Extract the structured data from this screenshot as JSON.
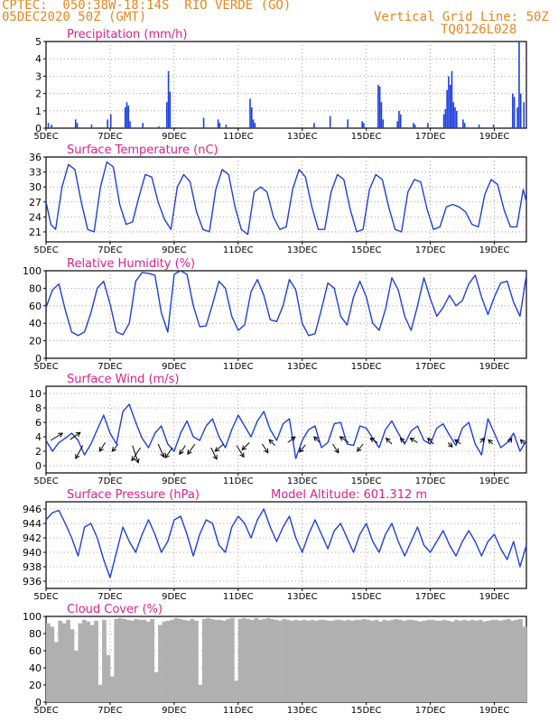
{
  "header": {
    "line1": "CPTEC:  050:38W-18:14S  RIO VERDE (GO)",
    "line2": "05DEC2020 50Z (GMT)",
    "grid_note": "Vertical Grid Line: 50Z",
    "run_code": "TQ0126L028"
  },
  "colors": {
    "header": "#e8861f",
    "title": "#e0208a",
    "line": "#1f3fe0",
    "cloud": "#b0b0b0",
    "arrow": "#000000"
  },
  "date_labels": [
    "5DEC",
    "7DEC",
    "9DEC",
    "11DEC",
    "13DEC",
    "15DEC",
    "17DEC",
    "19DEC"
  ],
  "chart_data": [
    {
      "id": "precip",
      "type": "bar",
      "title": "Precipitation (mm/h)",
      "x_range_days": [
        5,
        20
      ],
      "ylim": [
        0,
        5
      ],
      "yticks": [
        0,
        1,
        2,
        3,
        4,
        5
      ],
      "x": [
        5.05,
        5.15,
        5.9,
        5.95,
        6.4,
        6.9,
        7.0,
        7.45,
        7.5,
        7.55,
        7.6,
        8.0,
        8.5,
        8.75,
        8.8,
        8.85,
        9.9,
        10.35,
        10.4,
        10.6,
        11.35,
        11.4,
        11.45,
        11.5,
        13.35,
        13.85,
        14.4,
        14.85,
        14.9,
        15.35,
        15.4,
        15.45,
        15.5,
        15.95,
        16.0,
        16.05,
        16.45,
        16.5,
        16.9,
        17.4,
        17.45,
        17.5,
        17.55,
        17.6,
        17.65,
        17.7,
        17.75,
        17.8,
        18.0,
        18.05,
        18.5,
        18.95,
        19.55,
        19.6,
        19.7,
        19.75,
        19.8,
        19.9
      ],
      "values": [
        0.3,
        0.2,
        0.5,
        0.3,
        0.2,
        0.5,
        0.8,
        1.2,
        1.5,
        1.3,
        0.4,
        0.3,
        0.1,
        1.5,
        3.3,
        2.1,
        0.6,
        0.5,
        0.3,
        0.2,
        1.7,
        1.2,
        0.5,
        0.3,
        0.3,
        0.7,
        0.5,
        0.4,
        0.3,
        2.5,
        2.4,
        1.5,
        0.5,
        0.4,
        1.0,
        0.8,
        0.3,
        0.2,
        0.3,
        0.8,
        1.1,
        2.2,
        3.0,
        2.5,
        3.3,
        1.5,
        1.2,
        1.0,
        0.5,
        0.3,
        0.2,
        0.2,
        2.0,
        1.8,
        1.2,
        5.0,
        2.0,
        1.5
      ]
    },
    {
      "id": "temp",
      "type": "line",
      "title": "Surface Temperature (nC)",
      "x_range_days": [
        5,
        20
      ],
      "ylim": [
        19,
        36
      ],
      "yticks": [
        21,
        24,
        27,
        30,
        33,
        36
      ],
      "x": [
        5.0,
        5.15,
        5.3,
        5.5,
        5.7,
        5.9,
        6.1,
        6.3,
        6.5,
        6.7,
        6.9,
        7.1,
        7.3,
        7.5,
        7.7,
        7.9,
        8.1,
        8.3,
        8.5,
        8.7,
        8.9,
        9.1,
        9.3,
        9.5,
        9.7,
        9.9,
        10.1,
        10.3,
        10.5,
        10.7,
        10.9,
        11.1,
        11.3,
        11.5,
        11.7,
        11.9,
        12.1,
        12.3,
        12.5,
        12.7,
        12.9,
        13.1,
        13.3,
        13.5,
        13.7,
        13.9,
        14.1,
        14.3,
        14.5,
        14.7,
        14.9,
        15.1,
        15.3,
        15.5,
        15.7,
        15.9,
        16.1,
        16.3,
        16.5,
        16.7,
        16.9,
        17.1,
        17.3,
        17.5,
        17.7,
        17.9,
        18.1,
        18.3,
        18.5,
        18.7,
        18.9,
        19.1,
        19.3,
        19.5,
        19.7,
        19.9,
        20.0
      ],
      "values": [
        27.0,
        22.5,
        21.5,
        30.0,
        34.5,
        33.5,
        27.0,
        21.5,
        21.0,
        30.0,
        35.0,
        34.0,
        26.5,
        22.5,
        23.0,
        28.0,
        32.5,
        32.0,
        27.0,
        23.5,
        21.5,
        30.0,
        32.5,
        31.0,
        25.0,
        21.5,
        21.0,
        29.5,
        33.5,
        32.5,
        26.0,
        21.5,
        20.5,
        29.0,
        30.0,
        29.0,
        24.0,
        21.5,
        22.0,
        29.5,
        33.5,
        32.0,
        26.0,
        21.5,
        21.5,
        29.0,
        32.5,
        31.5,
        25.5,
        21.0,
        21.5,
        29.5,
        32.5,
        31.5,
        26.0,
        21.5,
        21.0,
        29.0,
        31.5,
        31.0,
        25.5,
        21.5,
        22.0,
        26.0,
        26.5,
        26.0,
        25.0,
        22.5,
        22.0,
        28.5,
        31.5,
        30.5,
        25.5,
        22.0,
        22.0,
        29.5,
        27.0
      ]
    },
    {
      "id": "rh",
      "type": "line",
      "title": "Relative Humidity (%)",
      "x_range_days": [
        5,
        20
      ],
      "ylim": [
        0,
        100
      ],
      "yticks": [
        0,
        20,
        40,
        60,
        80,
        100
      ],
      "x": [
        5.0,
        5.2,
        5.4,
        5.6,
        5.8,
        6.0,
        6.2,
        6.4,
        6.6,
        6.8,
        7.0,
        7.2,
        7.4,
        7.6,
        7.8,
        8.0,
        8.2,
        8.4,
        8.6,
        8.8,
        9.0,
        9.2,
        9.4,
        9.6,
        9.8,
        10.0,
        10.2,
        10.4,
        10.6,
        10.8,
        11.0,
        11.2,
        11.4,
        11.6,
        11.8,
        12.0,
        12.2,
        12.4,
        12.6,
        12.8,
        13.0,
        13.2,
        13.4,
        13.6,
        13.8,
        14.0,
        14.2,
        14.4,
        14.6,
        14.8,
        15.0,
        15.2,
        15.4,
        15.6,
        15.8,
        16.0,
        16.2,
        16.4,
        16.6,
        16.8,
        17.0,
        17.2,
        17.4,
        17.6,
        17.8,
        18.0,
        18.2,
        18.4,
        18.6,
        18.8,
        19.0,
        19.2,
        19.4,
        19.6,
        19.8,
        20.0
      ],
      "values": [
        58,
        78,
        85,
        55,
        30,
        26,
        30,
        52,
        80,
        88,
        62,
        30,
        27,
        40,
        88,
        98,
        97,
        95,
        52,
        30,
        96,
        100,
        96,
        60,
        36,
        37,
        62,
        88,
        80,
        48,
        32,
        38,
        76,
        90,
        72,
        44,
        42,
        60,
        90,
        78,
        40,
        26,
        28,
        56,
        86,
        80,
        48,
        38,
        70,
        88,
        70,
        40,
        32,
        56,
        92,
        78,
        48,
        32,
        60,
        92,
        68,
        48,
        58,
        72,
        60,
        66,
        85,
        95,
        70,
        50,
        70,
        86,
        88,
        64,
        48,
        95
      ]
    },
    {
      "id": "wind",
      "type": "line",
      "title": "Surface Wind (m/s)",
      "x_range_days": [
        5,
        20
      ],
      "ylim": [
        -1,
        11
      ],
      "yticks": [
        0,
        2,
        4,
        6,
        8,
        10
      ],
      "x": [
        5.0,
        5.2,
        5.4,
        5.6,
        5.8,
        6.0,
        6.2,
        6.4,
        6.6,
        6.8,
        7.0,
        7.2,
        7.4,
        7.6,
        7.8,
        8.0,
        8.2,
        8.4,
        8.6,
        8.8,
        9.0,
        9.2,
        9.4,
        9.6,
        9.8,
        10.0,
        10.2,
        10.4,
        10.6,
        10.8,
        11.0,
        11.2,
        11.4,
        11.6,
        11.8,
        12.0,
        12.2,
        12.4,
        12.6,
        12.8,
        13.0,
        13.2,
        13.4,
        13.6,
        13.8,
        14.0,
        14.2,
        14.4,
        14.6,
        14.8,
        15.0,
        15.2,
        15.4,
        15.6,
        15.8,
        16.0,
        16.2,
        16.4,
        16.6,
        16.8,
        17.0,
        17.2,
        17.4,
        17.6,
        17.8,
        18.0,
        18.2,
        18.4,
        18.6,
        18.8,
        19.0,
        19.2,
        19.4,
        19.6,
        19.8,
        20.0
      ],
      "values": [
        3.5,
        2.0,
        3.2,
        3.8,
        4.5,
        3.5,
        1.5,
        3.0,
        5.0,
        7.0,
        4.5,
        3.0,
        7.5,
        8.5,
        6.0,
        3.8,
        2.5,
        4.5,
        5.5,
        3.0,
        2.0,
        4.5,
        6.2,
        4.0,
        3.5,
        5.5,
        6.5,
        4.0,
        2.5,
        5.0,
        7.0,
        5.5,
        4.0,
        6.2,
        7.5,
        5.0,
        3.5,
        5.8,
        6.5,
        1.0,
        3.5,
        5.0,
        5.5,
        2.5,
        3.2,
        5.8,
        6.0,
        3.0,
        2.8,
        5.5,
        5.2,
        3.8,
        2.5,
        5.0,
        6.2,
        4.5,
        3.0,
        4.8,
        5.5,
        3.5,
        3.0,
        5.2,
        5.8,
        4.2,
        2.8,
        5.2,
        6.0,
        3.0,
        1.5,
        6.5,
        4.5,
        2.5,
        3.2,
        4.5,
        2.0,
        3.5
      ],
      "arrows": {
        "x": [
          5.15,
          5.75,
          6.15,
          6.85,
          7.25,
          7.7,
          7.95,
          8.5,
          8.95,
          9.35,
          9.65,
          10.15,
          10.55,
          10.95,
          11.35,
          11.75,
          12.15,
          12.55,
          13.1,
          13.55,
          13.95,
          14.45,
          14.9,
          15.35,
          15.8,
          16.2,
          16.6,
          17.1,
          17.55,
          17.95,
          18.55,
          18.95,
          19.45,
          19.95
        ],
        "y": [
          3.5,
          3.6,
          2.8,
          3.2,
          3.0,
          2.8,
          2.5,
          3.0,
          2.5,
          2.8,
          3.0,
          2.5,
          3.0,
          2.8,
          3.2,
          3.0,
          2.8,
          3.2,
          2.9,
          3.2,
          3.0,
          3.2,
          3.0,
          3.2,
          3.0,
          3.2,
          3.2,
          3.0,
          3.2,
          3.0,
          3.2,
          3.0,
          3.2,
          3.0
        ],
        "u": [
          1.6,
          1.4,
          -1.0,
          -0.8,
          -0.8,
          0.8,
          -1.2,
          0.8,
          -1.0,
          -0.8,
          -1.0,
          0.8,
          -1.2,
          1.0,
          -1.0,
          0.8,
          -0.8,
          1.0,
          -0.8,
          -0.8,
          0.8,
          -1.2,
          -0.8,
          -1.0,
          -0.8,
          -0.6,
          -1.0,
          -0.8,
          0.6,
          -0.8,
          0.6,
          -0.6,
          0.4,
          -0.6
        ],
        "v": [
          1.0,
          1.0,
          -1.8,
          -1.2,
          -1.0,
          -2.4,
          -1.8,
          -1.8,
          -1.4,
          -1.2,
          -1.4,
          -1.6,
          -1.0,
          -1.6,
          -1.0,
          -1.2,
          0.8,
          0.8,
          -1.0,
          0.8,
          -1.2,
          0.8,
          -1.0,
          0.6,
          0.8,
          0.6,
          0.6,
          0.8,
          -0.6,
          0.6,
          0.6,
          0.6,
          0.6,
          0.6
        ]
      }
    },
    {
      "id": "pressure",
      "type": "line",
      "title": "Surface Pressure (hPa)",
      "subtitle": "Model Altitude: 601.312  m",
      "x_range_days": [
        5,
        20
      ],
      "ylim": [
        935,
        947
      ],
      "yticks": [
        936,
        938,
        940,
        942,
        944,
        946
      ],
      "x": [
        5.0,
        5.2,
        5.4,
        5.6,
        5.8,
        6.0,
        6.2,
        6.4,
        6.6,
        6.8,
        7.0,
        7.2,
        7.4,
        7.6,
        7.8,
        8.0,
        8.2,
        8.4,
        8.6,
        8.8,
        9.0,
        9.2,
        9.4,
        9.6,
        9.8,
        10.0,
        10.2,
        10.4,
        10.6,
        10.8,
        11.0,
        11.2,
        11.4,
        11.6,
        11.8,
        12.0,
        12.2,
        12.4,
        12.6,
        12.8,
        13.0,
        13.2,
        13.4,
        13.6,
        13.8,
        14.0,
        14.2,
        14.4,
        14.6,
        14.8,
        15.0,
        15.2,
        15.4,
        15.6,
        15.8,
        16.0,
        16.2,
        16.4,
        16.6,
        16.8,
        17.0,
        17.2,
        17.4,
        17.6,
        17.8,
        18.0,
        18.2,
        18.4,
        18.6,
        18.8,
        19.0,
        19.2,
        19.4,
        19.6,
        19.8,
        20.0
      ],
      "values": [
        944.5,
        945.5,
        945.8,
        944.0,
        942.0,
        939.5,
        943.5,
        944.0,
        942.0,
        939.0,
        936.5,
        940.0,
        943.5,
        941.5,
        940.0,
        942.5,
        944.5,
        942.5,
        940.0,
        941.5,
        944.5,
        945.0,
        942.5,
        939.5,
        942.5,
        944.5,
        944.0,
        941.0,
        940.0,
        943.5,
        945.0,
        944.0,
        942.0,
        944.5,
        946.0,
        943.5,
        941.5,
        943.5,
        945.0,
        942.0,
        940.0,
        942.5,
        944.5,
        942.5,
        940.5,
        943.0,
        944.0,
        942.0,
        940.0,
        942.5,
        944.0,
        941.5,
        940.0,
        942.5,
        944.0,
        941.5,
        939.5,
        941.5,
        943.5,
        941.0,
        940.0,
        941.5,
        943.0,
        941.0,
        939.5,
        941.5,
        943.0,
        941.5,
        939.5,
        941.5,
        942.5,
        940.5,
        939.0,
        941.5,
        938.0,
        941.0
      ]
    },
    {
      "id": "cloud",
      "type": "bar",
      "title": "Cloud Cover (%)",
      "x_range_days": [
        5,
        20
      ],
      "ylim": [
        0,
        100
      ],
      "yticks": [
        0,
        20,
        40,
        60,
        80,
        100
      ],
      "x": [
        5.0,
        5.125,
        5.25,
        5.375,
        5.5,
        5.625,
        5.75,
        5.875,
        6.0,
        6.125,
        6.25,
        6.375,
        6.5,
        6.625,
        6.75,
        6.875,
        7.0,
        7.125,
        7.25,
        7.375,
        7.5,
        7.625,
        7.75,
        7.875,
        8.0,
        8.125,
        8.25,
        8.375,
        8.5,
        8.625,
        8.75,
        8.875,
        9.0,
        9.125,
        9.25,
        9.375,
        9.5,
        9.625,
        9.75,
        9.875,
        10.0,
        10.125,
        10.25,
        10.375,
        10.5,
        10.625,
        10.75,
        10.875,
        11.0,
        11.125,
        11.25,
        11.375,
        11.5,
        11.625,
        11.75,
        11.875,
        12.0,
        12.125,
        12.25,
        12.375,
        12.5,
        12.625,
        12.75,
        12.875,
        13.0,
        13.125,
        13.25,
        13.375,
        13.5,
        13.625,
        13.75,
        13.875,
        14.0,
        14.125,
        14.25,
        14.375,
        14.5,
        14.625,
        14.75,
        14.875,
        15.0,
        15.125,
        15.25,
        15.375,
        15.5,
        15.625,
        15.75,
        15.875,
        16.0,
        16.125,
        16.25,
        16.375,
        16.5,
        16.625,
        16.75,
        16.875,
        17.0,
        17.125,
        17.25,
        17.375,
        17.5,
        17.625,
        17.75,
        17.875,
        18.0,
        18.125,
        18.25,
        18.375,
        18.5,
        18.625,
        18.75,
        18.875,
        19.0,
        19.125,
        19.25,
        19.375,
        19.5,
        19.625,
        19.75,
        19.875
      ],
      "values": [
        92,
        88,
        70,
        95,
        92,
        96,
        85,
        60,
        92,
        96,
        94,
        90,
        95,
        20,
        96,
        55,
        30,
        97,
        98,
        97,
        96,
        95,
        97,
        96,
        96,
        94,
        97,
        35,
        90,
        94,
        95,
        96,
        98,
        97,
        96,
        95,
        97,
        95,
        20,
        97,
        98,
        97,
        96,
        96,
        95,
        97,
        98,
        25,
        97,
        98,
        97,
        96,
        98,
        96,
        97,
        98,
        97,
        96,
        95,
        97,
        96,
        95,
        96,
        95,
        96,
        95,
        96,
        95,
        96,
        96,
        95,
        95,
        96,
        96,
        95,
        96,
        95,
        96,
        96,
        97,
        96,
        95,
        96,
        94,
        96,
        95,
        96,
        97,
        96,
        95,
        96,
        96,
        95,
        94,
        95,
        96,
        96,
        95,
        95,
        96,
        95,
        94,
        96,
        95,
        96,
        95,
        96,
        95,
        96,
        94,
        95,
        96,
        96,
        95,
        96,
        97,
        95,
        96,
        97,
        88
      ]
    }
  ]
}
